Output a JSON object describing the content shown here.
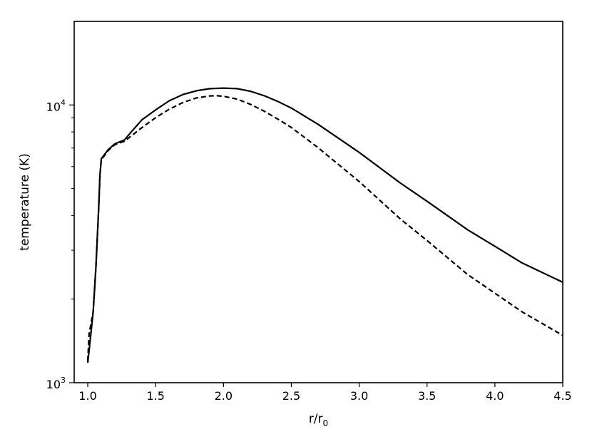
{
  "chart_data": {
    "type": "line",
    "xlabel": "r/r",
    "xlabel_subscript": "0",
    "ylabel": "temperature (K)",
    "xlim": [
      0.9,
      4.5
    ],
    "ylim": [
      1000,
      20000
    ],
    "yscale": "log",
    "grid": false,
    "legend": "none",
    "x_ticks": [
      1.0,
      1.5,
      2.0,
      2.5,
      3.0,
      3.5,
      4.0,
      4.5
    ],
    "x_tick_labels": [
      "1.0",
      "1.5",
      "2.0",
      "2.5",
      "3.0",
      "3.5",
      "4.0",
      "4.5"
    ],
    "y_major_ticks": [
      {
        "value": 1000,
        "base": "10",
        "exp": "3"
      },
      {
        "value": 10000,
        "base": "10",
        "exp": "4"
      }
    ],
    "y_minor_ticks": [
      2000,
      3000,
      4000,
      5000,
      6000,
      7000,
      8000,
      9000
    ],
    "series": [
      {
        "style": "solid",
        "color": "#000000",
        "points": [
          [
            1.0,
            1180
          ],
          [
            1.02,
            1450
          ],
          [
            1.04,
            1800
          ],
          [
            1.06,
            2600
          ],
          [
            1.08,
            4200
          ],
          [
            1.09,
            5600
          ],
          [
            1.1,
            6400
          ],
          [
            1.15,
            6900
          ],
          [
            1.2,
            7250
          ],
          [
            1.27,
            7480
          ],
          [
            1.33,
            8100
          ],
          [
            1.4,
            8850
          ],
          [
            1.5,
            9600
          ],
          [
            1.6,
            10350
          ],
          [
            1.7,
            10900
          ],
          [
            1.8,
            11250
          ],
          [
            1.9,
            11450
          ],
          [
            2.0,
            11500
          ],
          [
            2.1,
            11450
          ],
          [
            2.2,
            11200
          ],
          [
            2.3,
            10800
          ],
          [
            2.4,
            10300
          ],
          [
            2.5,
            9750
          ],
          [
            2.7,
            8500
          ],
          [
            3.0,
            6750
          ],
          [
            3.3,
            5250
          ],
          [
            3.5,
            4500
          ],
          [
            3.8,
            3550
          ],
          [
            4.0,
            3100
          ],
          [
            4.2,
            2700
          ],
          [
            4.5,
            2300
          ]
        ]
      },
      {
        "style": "dashed",
        "color": "#000000",
        "points": [
          [
            1.0,
            1200
          ],
          [
            1.01,
            1500
          ],
          [
            1.04,
            1800
          ],
          [
            1.06,
            2600
          ],
          [
            1.08,
            4200
          ],
          [
            1.09,
            5600
          ],
          [
            1.1,
            6350
          ],
          [
            1.15,
            6850
          ],
          [
            1.2,
            7200
          ],
          [
            1.27,
            7400
          ],
          [
            1.33,
            7800
          ],
          [
            1.4,
            8300
          ],
          [
            1.5,
            9000
          ],
          [
            1.6,
            9650
          ],
          [
            1.7,
            10200
          ],
          [
            1.8,
            10600
          ],
          [
            1.9,
            10780
          ],
          [
            1.95,
            10800
          ],
          [
            2.0,
            10750
          ],
          [
            2.1,
            10500
          ],
          [
            2.2,
            10050
          ],
          [
            2.3,
            9500
          ],
          [
            2.4,
            8900
          ],
          [
            2.5,
            8300
          ],
          [
            2.7,
            7000
          ],
          [
            3.0,
            5300
          ],
          [
            3.3,
            3900
          ],
          [
            3.5,
            3250
          ],
          [
            3.8,
            2450
          ],
          [
            4.0,
            2100
          ],
          [
            4.2,
            1800
          ],
          [
            4.5,
            1480
          ]
        ]
      }
    ]
  }
}
